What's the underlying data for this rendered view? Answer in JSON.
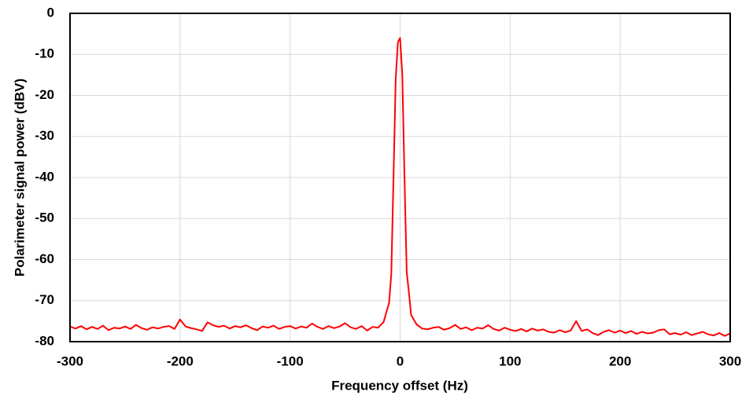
{
  "chart_data": {
    "type": "line",
    "x_label": "Frequency offset (Hz)",
    "y_label": "Polarimeter signal power (dBV)",
    "xlim": [
      -300,
      300
    ],
    "xticks": [
      -300,
      -200,
      -100,
      0,
      100,
      200,
      300
    ],
    "ylim": [
      -80,
      0
    ],
    "yticks": [
      0,
      -10,
      -20,
      -30,
      -40,
      -50,
      -60,
      -70,
      -80
    ],
    "grid": true,
    "x": [
      -300,
      -295,
      -290,
      -285,
      -280,
      -275,
      -270,
      -265,
      -260,
      -255,
      -250,
      -245,
      -240,
      -235,
      -230,
      -225,
      -220,
      -215,
      -210,
      -205,
      -200,
      -195,
      -190,
      -185,
      -180,
      -175,
      -170,
      -165,
      -160,
      -155,
      -150,
      -145,
      -140,
      -135,
      -130,
      -125,
      -120,
      -115,
      -110,
      -105,
      -100,
      -95,
      -90,
      -85,
      -80,
      -75,
      -70,
      -65,
      -60,
      -55,
      -50,
      -45,
      -40,
      -35,
      -30,
      -25,
      -20,
      -15,
      -10,
      -8,
      -6,
      -4,
      -2,
      0,
      2,
      4,
      6,
      8,
      10,
      15,
      20,
      25,
      30,
      35,
      40,
      45,
      50,
      55,
      60,
      65,
      70,
      75,
      80,
      85,
      90,
      95,
      100,
      105,
      110,
      115,
      120,
      125,
      130,
      135,
      140,
      145,
      150,
      155,
      160,
      165,
      170,
      175,
      180,
      185,
      190,
      195,
      200,
      205,
      210,
      215,
      220,
      225,
      230,
      235,
      240,
      245,
      250,
      255,
      260,
      265,
      270,
      275,
      280,
      285,
      290,
      295,
      300
    ],
    "series": [
      {
        "name": "Polarimeter signal",
        "color": "#ff0000",
        "values": [
          -76.3,
          -76.8,
          -76.2,
          -77.0,
          -76.4,
          -76.9,
          -76.1,
          -77.2,
          -76.6,
          -76.8,
          -76.3,
          -76.9,
          -75.9,
          -76.7,
          -77.1,
          -76.5,
          -76.8,
          -76.4,
          -76.2,
          -76.9,
          -74.6,
          -76.3,
          -76.7,
          -77.0,
          -77.4,
          -75.3,
          -76.0,
          -76.4,
          -76.1,
          -76.8,
          -76.2,
          -76.5,
          -76.0,
          -76.7,
          -77.2,
          -76.3,
          -76.6,
          -76.1,
          -76.9,
          -76.4,
          -76.2,
          -76.8,
          -76.3,
          -76.6,
          -75.6,
          -76.4,
          -76.9,
          -76.2,
          -76.7,
          -76.3,
          -75.5,
          -76.5,
          -76.9,
          -76.2,
          -77.3,
          -76.4,
          -76.6,
          -75.2,
          -70.5,
          -63.5,
          -40,
          -16,
          -7,
          -6,
          -15,
          -40,
          -63,
          -68,
          -73.5,
          -75.8,
          -76.8,
          -77.0,
          -76.6,
          -76.4,
          -77.1,
          -76.7,
          -75.9,
          -76.9,
          -76.5,
          -77.2,
          -76.6,
          -76.8,
          -76.0,
          -76.9,
          -77.3,
          -76.6,
          -77.1,
          -77.4,
          -76.9,
          -77.5,
          -76.8,
          -77.3,
          -77.0,
          -77.6,
          -77.8,
          -77.2,
          -77.7,
          -77.3,
          -75.0,
          -77.4,
          -77.0,
          -77.9,
          -78.4,
          -77.6,
          -77.2,
          -77.8,
          -77.3,
          -77.9,
          -77.4,
          -78.1,
          -77.6,
          -78.0,
          -77.8,
          -77.2,
          -77.0,
          -78.2,
          -77.9,
          -78.3,
          -77.7,
          -78.4,
          -78.0,
          -77.6,
          -78.2,
          -78.5,
          -77.9,
          -78.6,
          -78.0
        ]
      }
    ]
  }
}
